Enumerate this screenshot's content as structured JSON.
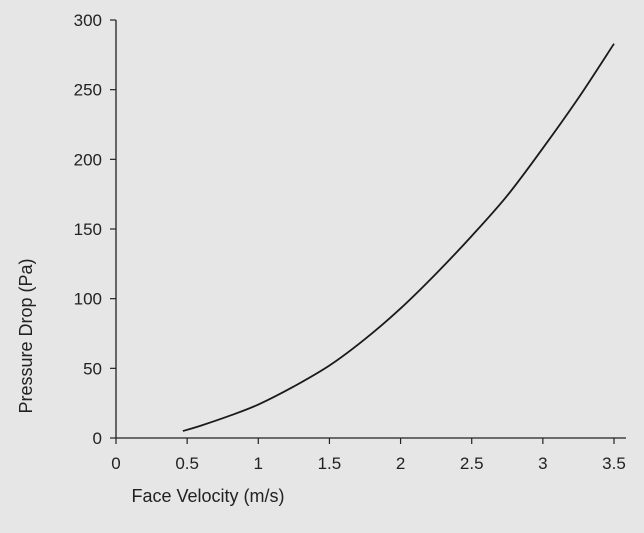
{
  "chart_data": {
    "type": "line",
    "title": "",
    "xlabel": "Face Velocity (m/s)",
    "ylabel": "Pressure Drop (Pa)",
    "xlim": [
      0,
      3.5
    ],
    "ylim": [
      0,
      300
    ],
    "x_ticks": [
      "0",
      "0.5",
      "1",
      "1.5",
      "2",
      "2.5",
      "3",
      "3.5"
    ],
    "y_ticks": [
      "0",
      "50",
      "100",
      "150",
      "200",
      "250",
      "300"
    ],
    "grid": false,
    "colors": {
      "line": "#1a1a1a",
      "axis": "#222222",
      "background": "#e6e6e7"
    },
    "series": [
      {
        "x": [
          0.47,
          0.6,
          0.8,
          1.0,
          1.25,
          1.5,
          1.75,
          2.0,
          2.25,
          2.5,
          2.75,
          3.0,
          3.25,
          3.5
        ],
        "y": [
          5,
          9,
          16,
          24,
          37,
          52,
          71,
          93,
          118,
          145,
          174,
          208,
          244,
          283
        ]
      }
    ]
  }
}
